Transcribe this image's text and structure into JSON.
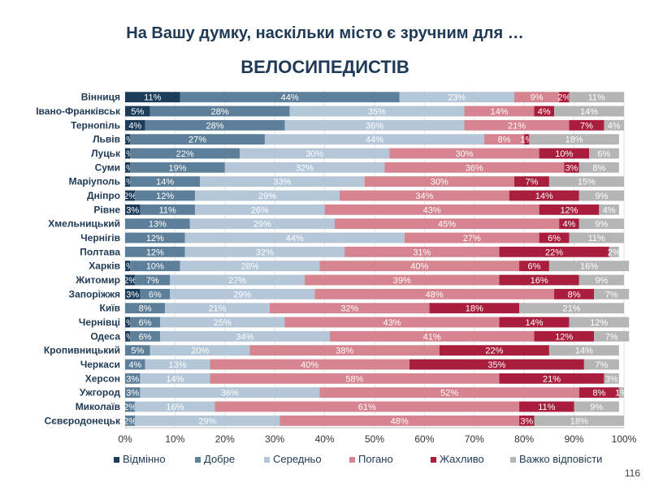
{
  "chart_data": {
    "type": "bar",
    "orientation": "horizontal",
    "stacked": true,
    "title": "На Вашу думку, наскільки місто є зручним для …",
    "subtitle": "ВЕЛОСИПЕДИСТІВ",
    "categories": [
      "Вінниця",
      "Івано-Франківськ",
      "Тернопіль",
      "Львів",
      "Луцьк",
      "Суми",
      "Маріуполь",
      "Дніпро",
      "Рівне",
      "Хмельницький",
      "Чернігів",
      "Полтава",
      "Харків",
      "Житомир",
      "Запоріжжя",
      "Київ",
      "Чернівці",
      "Одеса",
      "Кропивницький",
      "Черкаси",
      "Херсон",
      "Ужгород",
      "Миколаїв",
      "Сєвєродонецьк"
    ],
    "series": [
      {
        "name": "Відмінно",
        "color": "#1d3c5a",
        "values": [
          11,
          5,
          4,
          1,
          1,
          1,
          1,
          2,
          3,
          0,
          0,
          0,
          1,
          2,
          3,
          0,
          1,
          1,
          0,
          0,
          0,
          0,
          0,
          0
        ],
        "labels": [
          "11%",
          "5%",
          "4%",
          "1%",
          "1%",
          "1%",
          "1%",
          "2%",
          "3%",
          "",
          "",
          "",
          "1%",
          "2%",
          "3%",
          "",
          "1%",
          "1%",
          "",
          "",
          "",
          "",
          "",
          ""
        ]
      },
      {
        "name": "Добре",
        "color": "#5d7f99",
        "values": [
          44,
          28,
          28,
          27,
          22,
          19,
          14,
          12,
          11,
          13,
          12,
          12,
          10,
          7,
          6,
          8,
          6,
          6,
          5,
          4,
          3,
          3,
          2,
          2
        ],
        "labels": [
          "44%",
          "28%",
          "28%",
          "27%",
          "22%",
          "19%",
          "14%",
          "12%",
          "11%",
          "13%",
          "12%",
          "12%",
          "10%",
          "7%",
          "6%",
          "8%",
          "6%",
          "6%",
          "5%",
          "4%",
          "3%",
          "3%",
          "2%",
          "2%"
        ]
      },
      {
        "name": "Середньо",
        "color": "#b4c7d8",
        "values": [
          23,
          35,
          36,
          44,
          30,
          32,
          33,
          29,
          26,
          29,
          44,
          32,
          28,
          27,
          29,
          21,
          25,
          34,
          20,
          13,
          14,
          36,
          16,
          29
        ],
        "labels": [
          "23%",
          "35%",
          "36%",
          "44%",
          "30%",
          "32%",
          "33%",
          "29%",
          "26%",
          "29%",
          "44%",
          "32%",
          "28%",
          "27%",
          "29%",
          "21%",
          "25%",
          "34%",
          "20%",
          "13%",
          "14%",
          "36%",
          "16%",
          "29%"
        ]
      },
      {
        "name": "Погано",
        "color": "#d6848f",
        "values": [
          9,
          14,
          21,
          8,
          30,
          36,
          30,
          34,
          43,
          45,
          27,
          31,
          40,
          39,
          48,
          32,
          43,
          41,
          38,
          40,
          58,
          52,
          61,
          48
        ],
        "labels": [
          "9%",
          "14%",
          "21%",
          "8%",
          "30%",
          "36%",
          "30%",
          "34%",
          "43%",
          "45%",
          "27%",
          "31%",
          "40%",
          "39%",
          "48%",
          "32%",
          "43%",
          "41%",
          "38%",
          "40%",
          "58%",
          "52%",
          "61%",
          "48%"
        ]
      },
      {
        "name": "Жахливо",
        "color": "#a91e3c",
        "values": [
          2,
          4,
          7,
          1,
          10,
          3,
          7,
          14,
          12,
          4,
          6,
          22,
          6,
          16,
          8,
          18,
          14,
          12,
          22,
          35,
          21,
          8,
          11,
          3
        ],
        "labels": [
          "2%",
          "4%",
          "7%",
          "1%",
          "10%",
          "3%",
          "7%",
          "14%",
          "12%",
          "4%",
          "6%",
          "22%",
          "6%",
          "16%",
          "8%",
          "18%",
          "14%",
          "12%",
          "22%",
          "35%",
          "21%",
          "8%",
          "11%",
          "3%"
        ]
      },
      {
        "name": "Важко відповісти",
        "color": "#b5b5b5",
        "values": [
          11,
          14,
          4,
          18,
          6,
          8,
          15,
          9,
          4,
          9,
          11,
          2,
          16,
          9,
          7,
          21,
          12,
          7,
          14,
          7,
          3,
          1,
          9,
          18
        ],
        "labels": [
          "11%",
          "14%",
          "4%",
          "18%",
          "6%",
          "8%",
          "15%",
          "9%",
          "4%",
          "9%",
          "11%",
          "2%",
          "16%",
          "9%",
          "7%",
          "21%",
          "12%",
          "7%",
          "14%",
          "7%",
          "3%",
          "1%",
          "9%",
          "18%"
        ]
      }
    ],
    "xlim": [
      0,
      100
    ],
    "xticks": [
      "0%",
      "10%",
      "20%",
      "30%",
      "40%",
      "50%",
      "60%",
      "70%",
      "80%",
      "90%",
      "100%"
    ],
    "grid": true,
    "legend_position": "bottom"
  },
  "page_number": "116"
}
